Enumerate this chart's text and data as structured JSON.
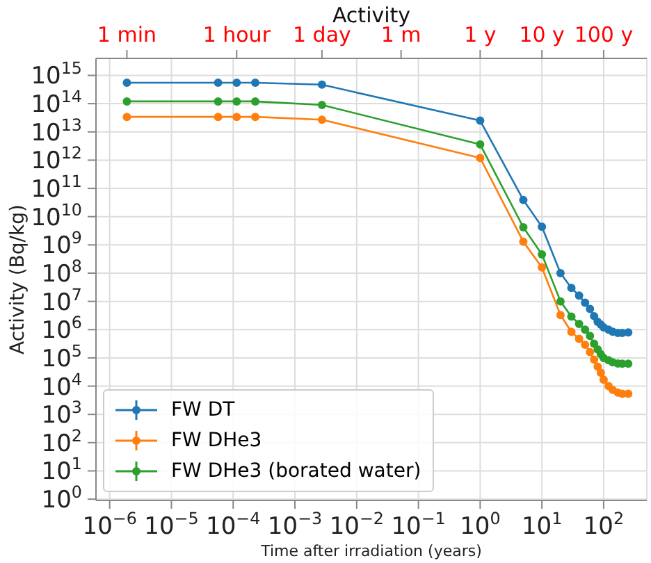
{
  "chart_data": {
    "type": "line",
    "title": "Activity",
    "xlabel": "Time after irradiation (years)",
    "ylabel": "Activity (Bq/kg)",
    "x": [
      1.9e-06,
      5.7e-05,
      0.000114,
      0.000228,
      0.00274,
      1,
      5,
      10,
      20,
      30,
      40,
      50,
      60,
      70,
      80,
      90,
      100,
      120,
      140,
      170,
      200,
      250
    ],
    "series": [
      {
        "name": "FW DT",
        "color": "#1f77b4",
        "values": [
          550000000000000.0,
          550000000000000.0,
          550000000000000.0,
          550000000000000.0,
          470000000000000.0,
          25000000000000.0,
          39000000000.0,
          4400000000.0,
          100000000.0,
          30000000.0,
          16000000.0,
          9000000.0,
          5400000.0,
          3000000.0,
          1900000.0,
          1500000.0,
          1200000.0,
          1000000.0,
          850000.0,
          760000.0,
          760000.0,
          800000.0
        ]
      },
      {
        "name": "FW DHe3",
        "color": "#ff7f0e",
        "values": [
          34000000000000.0,
          34000000000000.0,
          34000000000000.0,
          34000000000000.0,
          27000000000000.0,
          1200000000000.0,
          1300000000.0,
          160000000.0,
          3300000.0,
          830000.0,
          470000.0,
          290000.0,
          160000.0,
          87000.0,
          49000.0,
          30000.0,
          17000.0,
          10000.0,
          7400.0,
          5900.0,
          5400.0,
          5400.0
        ]
      },
      {
        "name": "FW DHe3 (borated water)",
        "color": "#2ca02c",
        "values": [
          120000000000000.0,
          120000000000000.0,
          120000000000000.0,
          120000000000000.0,
          90000000000000.0,
          3600000000000.0,
          4200000000.0,
          460000000.0,
          10000000.0,
          2900000.0,
          1600000.0,
          1000000.0,
          600000.0,
          320000.0,
          200000.0,
          135000.0,
          100000.0,
          83000.0,
          70000.0,
          63000.0,
          62000.0,
          62000.0
        ]
      }
    ],
    "log": "xy",
    "xlim": [
      6e-07,
      500
    ],
    "ylim": [
      0.9,
      4000000000000000.0
    ],
    "xticks": [
      {
        "value": 1e-06,
        "label": "10$^{−6}$"
      },
      {
        "value": 1e-05,
        "label": "10$^{−5}$"
      },
      {
        "value": 0.0001,
        "label": "10$^{−4}$"
      },
      {
        "value": 0.001,
        "label": "10$^{−3}$"
      },
      {
        "value": 0.01,
        "label": "10$^{−2}$"
      },
      {
        "value": 0.1,
        "label": "10$^{−1}$"
      },
      {
        "value": 1,
        "label": "10$^{0}$"
      },
      {
        "value": 10,
        "label": "10$^{1}$"
      },
      {
        "value": 100,
        "label": "10$^{2}$"
      }
    ],
    "yticks": [
      {
        "value": 1,
        "label": "10$^{0}$"
      },
      {
        "value": 10,
        "label": "10$^{1}$"
      },
      {
        "value": 100,
        "label": "10$^{2}$"
      },
      {
        "value": 1000.0,
        "label": "10$^{3}$"
      },
      {
        "value": 10000.0,
        "label": "10$^{4}$"
      },
      {
        "value": 100000.0,
        "label": "10$^{5}$"
      },
      {
        "value": 1000000.0,
        "label": "10$^{6}$"
      },
      {
        "value": 10000000.0,
        "label": "10$^{7}$"
      },
      {
        "value": 100000000.0,
        "label": "10$^{8}$"
      },
      {
        "value": 1000000000.0,
        "label": "10$^{9}$"
      },
      {
        "value": 10000000000.0,
        "label": "10$^{10}$"
      },
      {
        "value": 100000000000.0,
        "label": "10$^{11}$"
      },
      {
        "value": 1000000000000.0,
        "label": "10$^{12}$"
      },
      {
        "value": 10000000000000.0,
        "label": "10$^{13}$"
      },
      {
        "value": 100000000000000.0,
        "label": "10$^{14}$"
      },
      {
        "value": 1000000000000000.0,
        "label": "10$^{15}$"
      }
    ],
    "annotations": [
      {
        "text": "1 min",
        "x": 1.9e-06
      },
      {
        "text": "1 hour",
        "x": 0.000114
      },
      {
        "text": "1 day",
        "x": 0.00274
      },
      "1 m",
      {
        "text": "1 y",
        "x": 1
      },
      {
        "text": "10 y",
        "x": 10
      },
      {
        "text": "100 y",
        "x": 100
      }
    ],
    "grid": true,
    "legend": "bottom left",
    "marker": "circle",
    "line_style": "solid"
  }
}
